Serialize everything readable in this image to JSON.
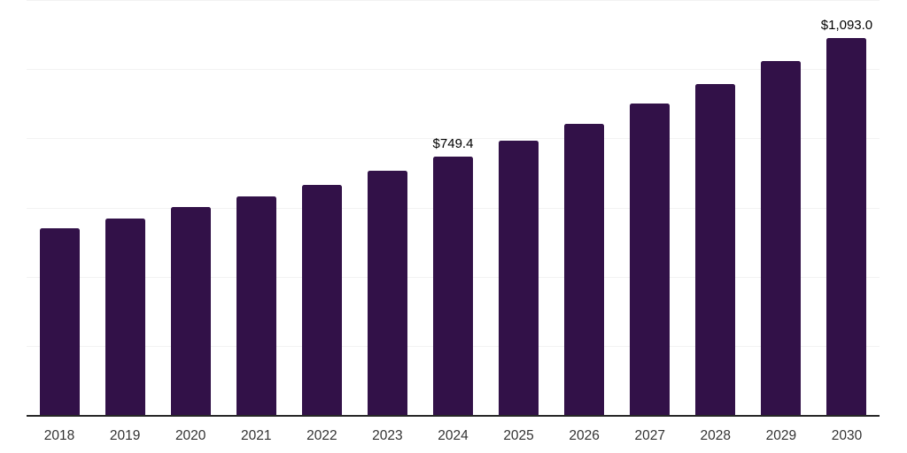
{
  "chart_data": {
    "type": "bar",
    "title": "",
    "xlabel": "",
    "ylabel": "",
    "categories": [
      "2018",
      "2019",
      "2020",
      "2021",
      "2022",
      "2023",
      "2024",
      "2025",
      "2026",
      "2027",
      "2028",
      "2029",
      "2030"
    ],
    "values": [
      542,
      571,
      604,
      635,
      669,
      709,
      749.4,
      795,
      844,
      902,
      959,
      1025,
      1093
    ],
    "value_labels": [
      null,
      null,
      null,
      null,
      null,
      null,
      "$749.4",
      null,
      null,
      null,
      null,
      null,
      "$1,093.0"
    ],
    "ylim": [
      0,
      1200
    ],
    "grid_step": 200,
    "grid": "horizontal",
    "legend": "none",
    "colors": {
      "bar": "#321148",
      "axis_line": "#262626",
      "gridline": "#F2F2F2",
      "value_label": "#000000",
      "tick_label": "#333333",
      "background": "#FFFFFF"
    }
  }
}
